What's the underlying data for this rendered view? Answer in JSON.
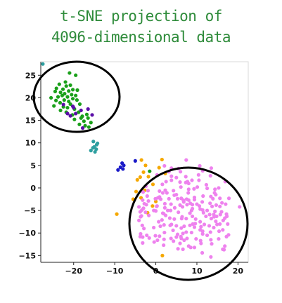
{
  "title_lines": [
    "t-SNE projection of",
    "4096-dimensional data"
  ],
  "chart_data": {
    "type": "scatter",
    "title": "t-SNE projection of 4096-dimensional data",
    "xlabel": "",
    "ylabel": "",
    "xlim": [
      -28,
      22.5
    ],
    "ylim": [
      -16.5,
      28
    ],
    "x_ticks": [
      -20,
      -10,
      0,
      10,
      20
    ],
    "y_ticks": [
      25,
      20,
      15,
      10,
      5,
      0,
      -5,
      -10,
      -15
    ],
    "grid": false,
    "legend": "none",
    "series": [
      {
        "color": "#1aa01a",
        "points": [
          [
            -21,
            25.5
          ],
          [
            -19.5,
            25
          ],
          [
            -22,
            23.5
          ],
          [
            -23.5,
            23
          ],
          [
            -21.8,
            22.6
          ],
          [
            -20.8,
            22.8
          ],
          [
            -22.6,
            21.9
          ],
          [
            -21.2,
            21.5
          ],
          [
            -20.2,
            21.8
          ],
          [
            -23.2,
            21.2
          ],
          [
            -24.5,
            21.4
          ],
          [
            -22.2,
            20.9
          ],
          [
            -20.5,
            20.7
          ],
          [
            -19.5,
            20.5
          ],
          [
            -23.8,
            20.2
          ],
          [
            -22.8,
            20.5
          ],
          [
            -21.5,
            20.2
          ],
          [
            -20.2,
            19.8
          ],
          [
            -25.5,
            20.0
          ],
          [
            -24.3,
            19.4
          ],
          [
            -22.3,
            19.5
          ],
          [
            -21.2,
            19.2
          ],
          [
            -19.2,
            19.5
          ],
          [
            -23.3,
            18.9
          ],
          [
            -20.8,
            18.6
          ],
          [
            -24.8,
            18.2
          ],
          [
            -22.5,
            18.0
          ],
          [
            -21.5,
            17.8
          ],
          [
            -18.5,
            18.6
          ],
          [
            -19.8,
            17.5
          ],
          [
            -23.2,
            17.2
          ],
          [
            -18.8,
            16.8
          ],
          [
            -20.3,
            16.2
          ],
          [
            -18.2,
            15.5
          ],
          [
            -16.5,
            15.5
          ],
          [
            -17.5,
            14.8
          ],
          [
            -15.8,
            14.5
          ],
          [
            -17.2,
            13.8
          ],
          [
            -16.3,
            13.5
          ],
          [
            -19.8,
            15.2
          ],
          [
            -18.6,
            14.1
          ],
          [
            -17.9,
            15.9
          ],
          [
            -16.8,
            16.3
          ],
          [
            -21.8,
            16.8
          ],
          [
            -24.2,
            22.1
          ],
          [
            -19.1,
            21.7
          ],
          [
            -1.5,
            3.7
          ]
        ]
      },
      {
        "color": "#5b0ea8",
        "points": [
          [
            -20,
            17.8
          ],
          [
            -21.5,
            16.5
          ],
          [
            -20.8,
            16.0
          ],
          [
            -19.5,
            16.5
          ],
          [
            -16.5,
            17.5
          ],
          [
            -18.2,
            17.2
          ],
          [
            -15.5,
            16.2
          ],
          [
            -17.8,
            13.3
          ],
          [
            -22.5,
            18.5
          ],
          [
            -20.2,
            18.1
          ]
        ]
      },
      {
        "color": "#2e9fa0",
        "points": [
          [
            -27.5,
            27.5
          ],
          [
            -15.2,
            10.3
          ],
          [
            -14.4,
            9.6
          ],
          [
            -15.0,
            9.1
          ],
          [
            -14.5,
            8.6
          ],
          [
            -15.8,
            8.3
          ],
          [
            -14.8,
            8.0
          ],
          [
            -14.2,
            9.9
          ],
          [
            -15.3,
            8.9
          ]
        ]
      },
      {
        "color": "#1a1ac8",
        "points": [
          [
            -8.2,
            5.5
          ],
          [
            -7.8,
            5.0
          ],
          [
            -8.6,
            4.6
          ],
          [
            -9.2,
            4.0
          ],
          [
            -8.0,
            4.2
          ],
          [
            -5.0,
            6.0
          ]
        ]
      },
      {
        "color": "#f5a800",
        "points": [
          [
            -3.5,
            6.2
          ],
          [
            -2.5,
            5.0
          ],
          [
            -3.0,
            3.5
          ],
          [
            -1.8,
            2.5
          ],
          [
            -3.8,
            2.4
          ],
          [
            -4.5,
            1.8
          ],
          [
            1.5,
            6.3
          ],
          [
            0.8,
            4.5
          ],
          [
            2.3,
            3.2
          ],
          [
            -0.7,
            0.8
          ],
          [
            -2.7,
            -0.5
          ],
          [
            -4.8,
            -0.8
          ],
          [
            -5.5,
            -2.5
          ],
          [
            -3.6,
            -2.2
          ],
          [
            -9.5,
            -5.8
          ],
          [
            -2.0,
            -5.5
          ],
          [
            -0.8,
            -4.0
          ],
          [
            0.0,
            -3.0
          ],
          [
            1.6,
            -15.0
          ]
        ]
      },
      {
        "color": "#ee82ee",
        "points": [
          [
            6.1,
            -10.8
          ],
          [
            6.2,
            -11.2
          ],
          [
            13.3,
            2.7
          ],
          [
            2.9,
            -5.0
          ],
          [
            13.4,
            -15.3
          ],
          [
            14.2,
            -6.4
          ],
          [
            1.9,
            -5.7
          ],
          [
            -3.2,
            -10.9
          ],
          [
            20.4,
            -4.2
          ],
          [
            -3.8,
            -10.8
          ],
          [
            3.2,
            -2.4
          ],
          [
            0.7,
            -7.5
          ],
          [
            10.6,
            -4.0
          ],
          [
            14.1,
            -5.9
          ],
          [
            9.4,
            -8.7
          ],
          [
            5.5,
            -5.4
          ],
          [
            7.4,
            6.2
          ],
          [
            5.4,
            -13.5
          ],
          [
            10.1,
            0.2
          ],
          [
            6.8,
            -3.1
          ],
          [
            11.0,
            -12.3
          ],
          [
            7.7,
            1.4
          ],
          [
            1.7,
            -5.6
          ],
          [
            -3.0,
            -4.5
          ],
          [
            -3.8,
            -5.3
          ],
          [
            5.9,
            -3.8
          ],
          [
            8.0,
            1.0
          ],
          [
            -2.2,
            -10.5
          ],
          [
            8.9,
            -6.3
          ],
          [
            -2.5,
            -5.4
          ],
          [
            -2.3,
            -3.7
          ],
          [
            3.8,
            1.7
          ],
          [
            15.3,
            0.0
          ],
          [
            16.8,
            -6.7
          ],
          [
            8.0,
            -12.9
          ],
          [
            9.6,
            -7.9
          ],
          [
            0.5,
            -2.2
          ],
          [
            -3.7,
            -10.2
          ],
          [
            11.4,
            -9.6
          ],
          [
            13.0,
            -8.4
          ],
          [
            -3.5,
            -6.2
          ],
          [
            -1.6,
            -11.1
          ],
          [
            5.0,
            -10.9
          ],
          [
            0.3,
            -4.0
          ],
          [
            10.4,
            2.9
          ],
          [
            0.9,
            -10.7
          ],
          [
            16.1,
            -3.3
          ],
          [
            14.4,
            -0.3
          ],
          [
            3.7,
            -11.2
          ],
          [
            16.6,
            -13.7
          ],
          [
            -0.1,
            -2.4
          ],
          [
            14.9,
            -8.1
          ],
          [
            7.6,
            -11.2
          ],
          [
            -4.1,
            -4.2
          ],
          [
            5.3,
            -2.4
          ],
          [
            2.3,
            -0.5
          ],
          [
            14.8,
            -6.3
          ],
          [
            1.1,
            -8.5
          ],
          [
            12.5,
            -5.0
          ],
          [
            -4.1,
            -7.2
          ],
          [
            4.6,
            -4.4
          ],
          [
            6.9,
            -8.5
          ],
          [
            6.1,
            0.2
          ],
          [
            17.5,
            -8.0
          ],
          [
            -2.8,
            -3.5
          ],
          [
            7.3,
            2.5
          ],
          [
            1.6,
            0.8
          ],
          [
            10.8,
            -9.3
          ],
          [
            13.9,
            -2.4
          ],
          [
            8.3,
            -5.6
          ],
          [
            15.6,
            -8.0
          ],
          [
            7.9,
            -1.1
          ],
          [
            13.2,
            -3.4
          ],
          [
            16.3,
            -13.6
          ],
          [
            -2.1,
            -1.8
          ],
          [
            2.2,
            -4.4
          ],
          [
            12.3,
            0.7
          ],
          [
            14.3,
            -1.1
          ],
          [
            3.2,
            3.6
          ],
          [
            15.3,
            -11.3
          ],
          [
            12.5,
            -0.1
          ],
          [
            -3.4,
            -4.9
          ],
          [
            17.2,
            -5.8
          ],
          [
            8.0,
            -2.7
          ],
          [
            0.9,
            -2.0
          ],
          [
            10.9,
            -11.7
          ],
          [
            9.7,
            -6.9
          ],
          [
            1.9,
            -12.7
          ],
          [
            -2.4,
            0.4
          ],
          [
            17.0,
            -3.6
          ],
          [
            10.0,
            -3.6
          ],
          [
            2.7,
            -1.1
          ],
          [
            8.5,
            -13.2
          ],
          [
            16.8,
            -12.9
          ],
          [
            8.4,
            -3.4
          ],
          [
            9.0,
            -8.0
          ],
          [
            2.4,
            -6.1
          ],
          [
            14.6,
            -1.5
          ],
          [
            7.5,
            -2.5
          ],
          [
            -1.9,
            -0.6
          ],
          [
            3.8,
            4.4
          ],
          [
            7.3,
            1.2
          ],
          [
            16.3,
            -9.3
          ],
          [
            9.4,
            -2.1
          ],
          [
            3.5,
            -8.3
          ],
          [
            6.5,
            -4.2
          ],
          [
            13.3,
            -9.8
          ],
          [
            14.4,
            -5.2
          ],
          [
            9.3,
            -0.2
          ],
          [
            -2.9,
            -9.0
          ],
          [
            6.6,
            -13.6
          ],
          [
            3.7,
            -3.6
          ],
          [
            0.9,
            -0.7
          ],
          [
            14.7,
            -3.8
          ],
          [
            6.2,
            -2.3
          ],
          [
            6.2,
            -8.9
          ],
          [
            17.3,
            -6.3
          ],
          [
            11.4,
            -10.2
          ],
          [
            10.8,
            -7.5
          ],
          [
            13.1,
            -5.9
          ],
          [
            10.5,
            1.7
          ],
          [
            6.4,
            -6.4
          ],
          [
            11.0,
            -8.6
          ],
          [
            8.0,
            -0.3
          ],
          [
            -3.2,
            -12.2
          ],
          [
            2.2,
            -3.5
          ],
          [
            9.8,
            -11.3
          ],
          [
            7.4,
            -9.8
          ],
          [
            2.5,
            1.4
          ],
          [
            8.9,
            -3.7
          ],
          [
            17.7,
            -10.4
          ],
          [
            16.0,
            -5.3
          ],
          [
            8.7,
            -9.9
          ],
          [
            5.0,
            -8.4
          ],
          [
            13.4,
            -1.9
          ],
          [
            6.3,
            -6.8
          ],
          [
            -3.2,
            -2.7
          ],
          [
            4.3,
            -0.6
          ],
          [
            2.0,
            -8.2
          ],
          [
            13.5,
            4.4
          ],
          [
            8.7,
            -5.0
          ],
          [
            5.9,
            1.3
          ],
          [
            17.8,
            -2.3
          ],
          [
            -3.1,
            -0.9
          ],
          [
            11.4,
            -4.9
          ],
          [
            11.5,
            -1.8
          ],
          [
            14.6,
            -7.4
          ],
          [
            6.7,
            -2.7
          ],
          [
            13.6,
            -12.4
          ],
          [
            12.2,
            -6.3
          ],
          [
            3.6,
            -5.0
          ],
          [
            5.5,
            4.3
          ],
          [
            -0.5,
            -5.0
          ],
          [
            11.6,
            -5.5
          ],
          [
            5.0,
            -1.5
          ],
          [
            0.3,
            2.9
          ],
          [
            11.4,
            3.8
          ],
          [
            15.6,
            -2.3
          ],
          [
            14.1,
            -8.8
          ],
          [
            8.9,
            -4.6
          ],
          [
            2.1,
            -9.9
          ],
          [
            7.6,
            -3.7
          ],
          [
            11.3,
            -3.1
          ],
          [
            0.4,
            -11.6
          ],
          [
            11.8,
            -8.1
          ],
          [
            15.4,
            -9.6
          ],
          [
            -3.7,
            -6.4
          ],
          [
            -0.1,
            -10.6
          ],
          [
            15.7,
            -5.9
          ],
          [
            10.7,
            4.9
          ],
          [
            4.2,
            -9.4
          ],
          [
            3.8,
            2.6
          ],
          [
            13.4,
            -11.5
          ],
          [
            6.9,
            -11.6
          ],
          [
            3.4,
            -6.7
          ],
          [
            16.9,
            1.4
          ],
          [
            8.3,
            -8.3
          ],
          [
            5.9,
            -12.3
          ],
          [
            -0.4,
            -12.0
          ],
          [
            -3.3,
            -8.3
          ],
          [
            8.8,
            1.7
          ],
          [
            11.3,
            -14.4
          ],
          [
            1.7,
            -1.1
          ],
          [
            1.5,
            -7.1
          ],
          [
            4.5,
            -6.9
          ],
          [
            1.2,
            -2.5
          ],
          [
            13.7,
            -4.1
          ],
          [
            4.5,
            -1.6
          ],
          [
            7.4,
            -6.8
          ],
          [
            6.6,
            -10.1
          ],
          [
            16.4,
            -7.2
          ],
          [
            10.8,
            -4.7
          ],
          [
            5.0,
            2.3
          ],
          [
            -1.7,
            -6.1
          ],
          [
            13.5,
            -6.8
          ],
          [
            9.4,
            -2.6
          ],
          [
            3.8,
            -8.1
          ],
          [
            2.1,
            4.9
          ],
          [
            -0.5,
            -8.8
          ],
          [
            -1.8,
            -2.9
          ],
          [
            15.6,
            -4.1
          ],
          [
            5.3,
            -10.3
          ],
          [
            9.4,
            -13.2
          ],
          [
            2.0,
            -11.4
          ],
          [
            17.2,
            -10.8
          ],
          [
            12.5,
            -10.5
          ],
          [
            6.0,
            3.6
          ],
          [
            4.3,
            -11.8
          ],
          [
            0.2,
            -4.1
          ],
          [
            0.0,
            -5.1
          ]
        ]
      }
    ]
  }
}
